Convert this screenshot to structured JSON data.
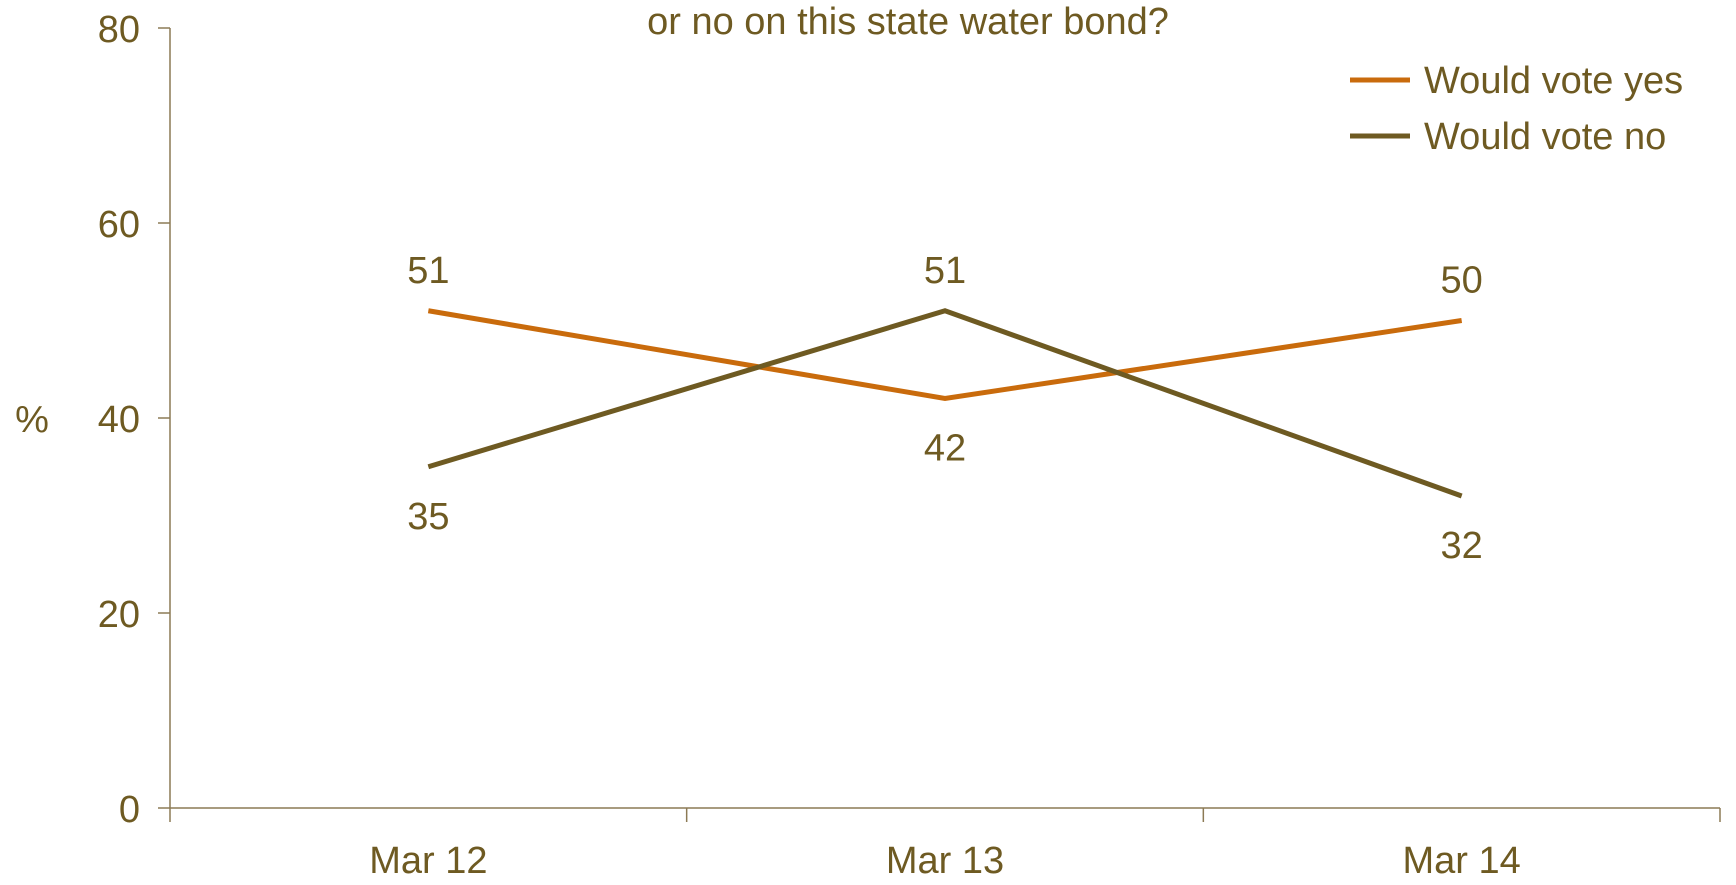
{
  "chart_data": {
    "type": "line",
    "title": "or no on this state water bond?",
    "xlabel": "",
    "ylabel": "%",
    "categories": [
      "Mar 12",
      "Mar 13",
      "Mar 14"
    ],
    "ylim": [
      0,
      80
    ],
    "yticks": [
      "0",
      "20",
      "40",
      "60",
      "80"
    ],
    "grid": false,
    "legend_position": "top-right",
    "series": [
      {
        "name": "Would vote yes",
        "color": "#C96B0C",
        "values": [
          51,
          42,
          50
        ],
        "data_labels": [
          "51",
          "42",
          "50"
        ],
        "label_placement": [
          "above",
          "below",
          "above"
        ]
      },
      {
        "name": "Would vote no",
        "color": "#6E5A22",
        "values": [
          35,
          51,
          32
        ],
        "data_labels": [
          "35",
          "51",
          "32"
        ],
        "label_placement": [
          "below",
          "above",
          "below"
        ]
      }
    ],
    "text_color": "#6E5A22",
    "axis_color": "#8C7A55"
  }
}
